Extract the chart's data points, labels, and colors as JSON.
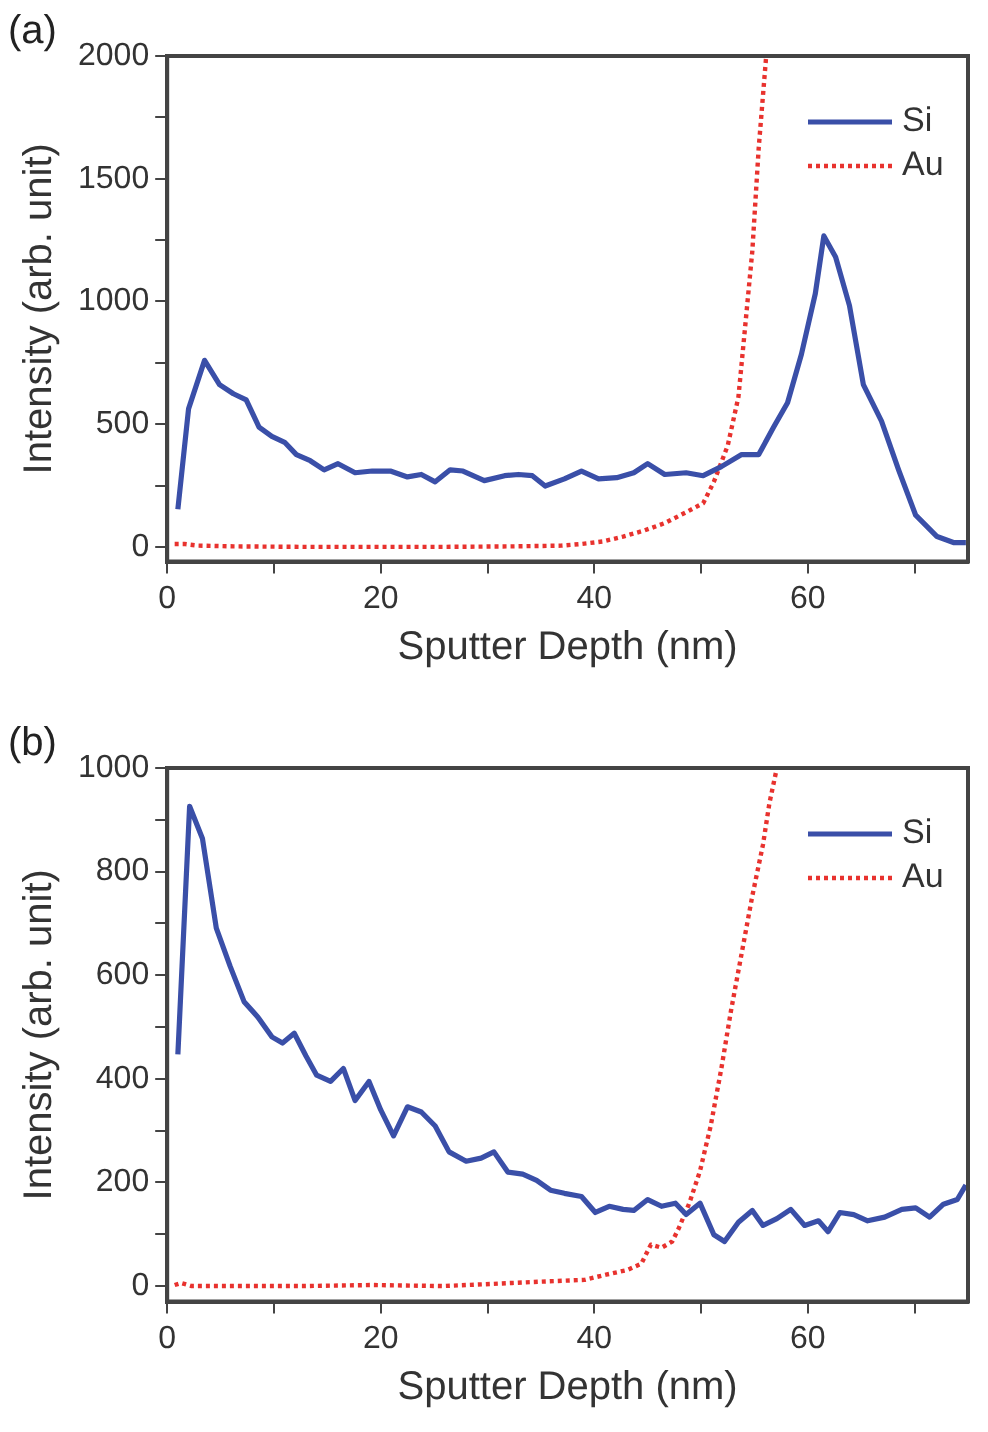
{
  "chart_data": [
    {
      "type": "line",
      "title": "(a)",
      "xlabel": "Sputter Depth (nm)",
      "ylabel": "Intensity (arb. unit)",
      "xlim": [
        0,
        75
      ],
      "xticks": [
        0,
        {
          "value": 10,
          "label": null
        },
        20,
        {
          "value": 30,
          "label": null
        },
        40,
        {
          "value": 50,
          "label": null
        },
        60,
        {
          "value": 70,
          "label": null
        }
      ],
      "ylim": [
        -60,
        2000
      ],
      "yticks": [
        0,
        {
          "value": 250,
          "label": null
        },
        500,
        {
          "value": 750,
          "label": null
        },
        1000,
        {
          "value": 1250,
          "label": null
        },
        1500,
        {
          "value": 1750,
          "label": null
        },
        2000
      ],
      "grid": false,
      "legend": "top right",
      "marker": "none",
      "series": [
        {
          "name": "Si",
          "color": "#3a4fa8",
          "line_style": "solid",
          "x": [
            1,
            2,
            3.5,
            4.9,
            6.2,
            7.4,
            8.6,
            9.8,
            11,
            12.1,
            13.4,
            14.7,
            16,
            17.6,
            19.2,
            20.9,
            22.5,
            23.8,
            25.1,
            26.5,
            27.7,
            29.7,
            31.6,
            32.9,
            34.2,
            35.4,
            37.2,
            38.8,
            40.4,
            42.1,
            43.7,
            45,
            46.6,
            48.6,
            50.2,
            51.9,
            53.8,
            55.4,
            56.8,
            58.1,
            59.4,
            60.7,
            61.5,
            62.6,
            63.9,
            65.2,
            66.9,
            68.5,
            70.1,
            72.1,
            73.7,
            74.8
          ],
          "values": [
            153,
            562,
            760,
            661,
            624,
            599,
            488,
            450,
            426,
            376,
            351,
            314,
            339,
            302,
            309,
            309,
            285,
            295,
            265,
            314,
            309,
            270,
            290,
            295,
            290,
            248,
            277,
            309,
            277,
            282,
            302,
            339,
            295,
            302,
            290,
            327,
            376,
            376,
            488,
            587,
            785,
            1032,
            1267,
            1181,
            983,
            661,
            512,
            314,
            129,
            42,
            17,
            17
          ]
        },
        {
          "name": "Au",
          "color": "#e8322e",
          "line_style": "dotted",
          "x": [
            0.7,
            1.6,
            2.9,
            6.2,
            12.7,
            19.2,
            25.8,
            32.3,
            36.9,
            38.8,
            40.8,
            42.7,
            44.7,
            46.6,
            48.6,
            50.2,
            51.2,
            52.5,
            53.5,
            54.1,
            54.8,
            55.4,
            56.1
          ],
          "values": [
            12,
            12,
            5,
            2,
            0,
            0,
            0,
            2,
            5,
            12,
            22,
            42,
            67,
            97,
            141,
            178,
            265,
            413,
            611,
            884,
            1205,
            1626,
            2000
          ]
        }
      ]
    },
    {
      "type": "line",
      "title": "(b)",
      "xlabel": "Sputter Depth (nm)",
      "ylabel": "Intensity (arb. unit)",
      "xlim": [
        0,
        75
      ],
      "xticks": [
        0,
        {
          "value": 10,
          "label": null
        },
        20,
        {
          "value": 30,
          "label": null
        },
        40,
        {
          "value": 50,
          "label": null
        },
        60,
        {
          "value": 70,
          "label": null
        }
      ],
      "ylim": [
        -30,
        1000
      ],
      "yticks": [
        0,
        {
          "value": 100,
          "label": null
        },
        200,
        {
          "value": 300,
          "label": null
        },
        400,
        {
          "value": 500,
          "label": null
        },
        600,
        {
          "value": 700,
          "label": null
        },
        800,
        {
          "value": 900,
          "label": null
        },
        1000
      ],
      "grid": false,
      "legend": "top right",
      "marker": "none",
      "series": [
        {
          "name": "Si",
          "color": "#3a4fa8",
          "line_style": "solid",
          "x": [
            1,
            2.1,
            3.3,
            4.6,
            5.9,
            7.2,
            8.5,
            9.8,
            10.8,
            11.9,
            13,
            14,
            15.3,
            16.5,
            17.6,
            18.9,
            20,
            21.2,
            22.5,
            23.8,
            25.1,
            26.4,
            28,
            29.4,
            30.6,
            31.9,
            33.3,
            34.6,
            35.9,
            37.2,
            38.8,
            40.1,
            41.4,
            42.7,
            43.7,
            45,
            46.3,
            47.6,
            48.6,
            49.9,
            51.2,
            52.2,
            53.5,
            54.8,
            55.8,
            57.1,
            58.4,
            59.7,
            61,
            61.9,
            63,
            64.3,
            65.6,
            67.2,
            68.8,
            70.1,
            71.4,
            72.7,
            74,
            74.8
          ],
          "values": [
            447,
            926,
            864,
            691,
            617,
            549,
            519,
            481,
            469,
            488,
            444,
            407,
            395,
            420,
            358,
            395,
            340,
            290,
            346,
            336,
            309,
            259,
            241,
            247,
            259,
            220,
            216,
            204,
            185,
            179,
            173,
            142,
            154,
            148,
            146,
            167,
            154,
            160,
            138,
            160,
            99,
            86,
            123,
            146,
            117,
            130,
            148,
            117,
            126,
            105,
            142,
            138,
            126,
            133,
            148,
            151,
            133,
            158,
            167,
            195
          ]
        },
        {
          "name": "Au",
          "color": "#e8322e",
          "line_style": "dotted",
          "x": [
            0.7,
            1.3,
            2.3,
            12.7,
            19.2,
            25.8,
            30.3,
            32.3,
            35.6,
            39.1,
            41.1,
            43.1,
            44.4,
            45.3,
            46.3,
            47.3,
            47.9,
            48.9,
            49.9,
            50.9,
            51.9,
            52.8,
            53.8,
            54.8,
            55.8,
            56.4,
            57.1
          ],
          "values": [
            2,
            6,
            0,
            0,
            2,
            0,
            4,
            6,
            9,
            12,
            22,
            31,
            43,
            80,
            74,
            86,
            111,
            160,
            222,
            309,
            420,
            531,
            642,
            753,
            852,
            932,
            1000
          ]
        }
      ]
    }
  ]
}
